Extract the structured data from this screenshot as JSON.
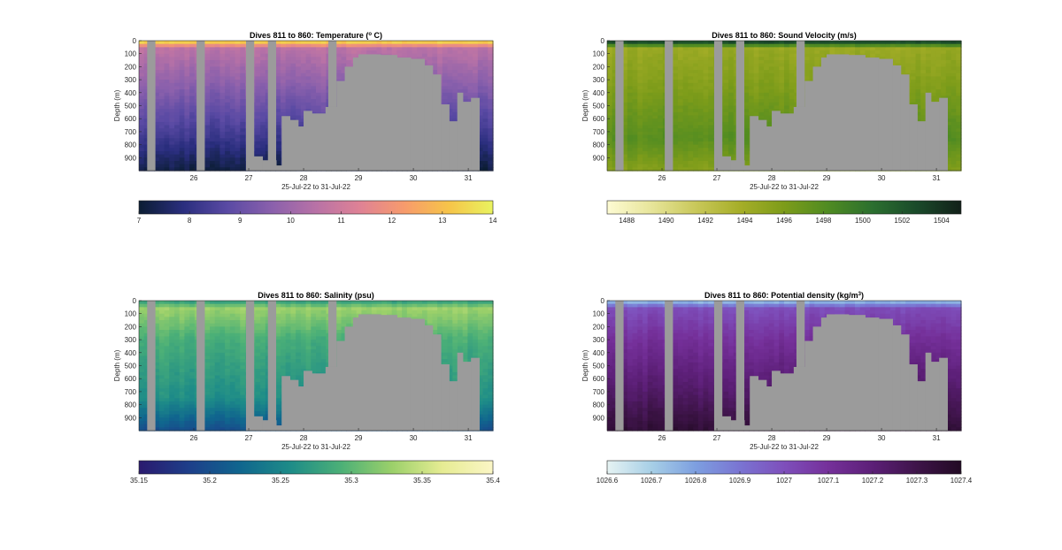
{
  "chart_data": [
    {
      "type": "heatmap",
      "variable": "temperature",
      "title": "Dives 811 to 860: Temperature (",
      "title_sup": "o",
      "title_end": " C)",
      "xlabel": "25-Jul-22 to 31-Jul-22",
      "ylabel": "Depth (m)",
      "xlim": [
        25.0,
        31.45
      ],
      "ylim": [
        0,
        1000
      ],
      "x_ticks": [
        26,
        27,
        28,
        29,
        30,
        31
      ],
      "x_tick_labels": [
        "26",
        "27",
        "28",
        "29",
        "30",
        "31"
      ],
      "y_ticks": [
        0,
        100,
        200,
        300,
        400,
        500,
        600,
        700,
        800,
        900
      ],
      "y_tick_labels": [
        "0",
        "100",
        "200",
        "300",
        "400",
        "500",
        "600",
        "700",
        "800",
        "900"
      ],
      "colorbar": {
        "range": [
          7,
          14
        ],
        "ticks": [
          7,
          8,
          9,
          10,
          11,
          12,
          13,
          14
        ],
        "tick_labels": [
          "7",
          "8",
          "9",
          "10",
          "11",
          "12",
          "13",
          "14"
        ],
        "colors": [
          "#0b1d33",
          "#2a2e7e",
          "#5a4aa4",
          "#8a60ac",
          "#b872a6",
          "#df8295",
          "#f79b6c",
          "#f6c449",
          "#e9f35f"
        ]
      },
      "profile": {
        "surface": 14,
        "thermocline": 10.6,
        "mid": 9.8,
        "deep": 8.2,
        "bottom": 7.2
      }
    },
    {
      "type": "heatmap",
      "variable": "sound_velocity",
      "title": "Dives 811 to 860: Sound Velocity (m/s)",
      "xlabel": "25-Jul-22 to 31-Jul-22",
      "ylabel": "Depth (m)",
      "xlim": [
        25.0,
        31.45
      ],
      "ylim": [
        0,
        1000
      ],
      "x_ticks": [
        26,
        27,
        28,
        29,
        30,
        31
      ],
      "x_tick_labels": [
        "26",
        "27",
        "28",
        "29",
        "30",
        "31"
      ],
      "y_ticks": [
        0,
        100,
        200,
        300,
        400,
        500,
        600,
        700,
        800,
        900
      ],
      "y_tick_labels": [
        "0",
        "100",
        "200",
        "300",
        "400",
        "500",
        "600",
        "700",
        "800",
        "900"
      ],
      "colorbar": {
        "range": [
          1487,
          1505
        ],
        "ticks": [
          1488,
          1490,
          1492,
          1494,
          1496,
          1498,
          1500,
          1502,
          1504
        ],
        "tick_labels": [
          "1488",
          "1490",
          "1492",
          "1494",
          "1496",
          "1498",
          "1500",
          "1502",
          "1504"
        ],
        "colors": [
          "#fdfbd3",
          "#e7e59a",
          "#c9c85a",
          "#a6ae28",
          "#7d9c1a",
          "#4f8b22",
          "#2b6f2f",
          "#1a4a2a",
          "#122019"
        ]
      },
      "profile": {
        "surface": 1504.5,
        "thermocline": 1494.5,
        "mid": 1495.5,
        "deep": 1497.8,
        "bottom": 1495.5
      }
    },
    {
      "type": "heatmap",
      "variable": "salinity",
      "title": "Dives 811 to 860: Salinity (psu)",
      "xlabel": "25-Jul-22 to 31-Jul-22",
      "ylabel": "Depth (m)",
      "xlim": [
        25.0,
        31.45
      ],
      "ylim": [
        0,
        1000
      ],
      "x_ticks": [
        26,
        27,
        28,
        29,
        30,
        31
      ],
      "x_tick_labels": [
        "26",
        "27",
        "28",
        "29",
        "30",
        "31"
      ],
      "y_ticks": [
        0,
        100,
        200,
        300,
        400,
        500,
        600,
        700,
        800,
        900
      ],
      "y_tick_labels": [
        "0",
        "100",
        "200",
        "300",
        "400",
        "500",
        "600",
        "700",
        "800",
        "900"
      ],
      "colorbar": {
        "range": [
          35.15,
          35.4
        ],
        "ticks": [
          35.15,
          35.2,
          35.25,
          35.3,
          35.35,
          35.4
        ],
        "tick_labels": [
          "35.15",
          "35.2",
          "35.25",
          "35.3",
          "35.35",
          "35.4"
        ],
        "colors": [
          "#2a1a6e",
          "#1d3f8a",
          "#10668e",
          "#1e8c88",
          "#4cb077",
          "#9bd06a",
          "#e6ec93",
          "#fbf6c6"
        ]
      },
      "profile": {
        "surface": 35.27,
        "thermocline": 35.33,
        "mid": 35.29,
        "deep": 35.26,
        "bottom": 35.2
      }
    },
    {
      "type": "heatmap",
      "variable": "potential_density",
      "title": "Dives 811 to 860: Potential density (kg/m",
      "title_sup": "3",
      "title_end": ")",
      "xlabel": "25-Jul-22 to 31-Jul-22",
      "ylabel": "Depth (m)",
      "xlim": [
        25.0,
        31.45
      ],
      "ylim": [
        0,
        1000
      ],
      "x_ticks": [
        26,
        27,
        28,
        29,
        30,
        31
      ],
      "x_tick_labels": [
        "26",
        "27",
        "28",
        "29",
        "30",
        "31"
      ],
      "y_ticks": [
        0,
        100,
        200,
        300,
        400,
        500,
        600,
        700,
        800,
        900
      ],
      "y_tick_labels": [
        "0",
        "100",
        "200",
        "300",
        "400",
        "500",
        "600",
        "700",
        "800",
        "900"
      ],
      "colorbar": {
        "range": [
          1026.6,
          1027.4
        ],
        "ticks": [
          1026.6,
          1026.7,
          1026.8,
          1026.9,
          1027,
          1027.1,
          1027.2,
          1027.3,
          1027.4
        ],
        "tick_labels": [
          "1026.6",
          "1026.7",
          "1026.8",
          "1026.9",
          "1027",
          "1027.1",
          "1027.2",
          "1027.3",
          "1027.4"
        ],
        "colors": [
          "#e6f3f3",
          "#a7cfe6",
          "#7d9fe0",
          "#7a74d2",
          "#7e4fbb",
          "#75309a",
          "#5c1f77",
          "#3e1449",
          "#220a24"
        ]
      },
      "profile": {
        "surface": 1026.7,
        "thermocline": 1027.0,
        "mid": 1027.1,
        "deep": 1027.25,
        "bottom": 1027.35
      }
    }
  ],
  "shared": {
    "no_data_color": "#9b9b9b",
    "no_data_columns_x": [
      [
        25.15,
        25.3
      ],
      [
        26.05,
        26.2
      ],
      [
        26.95,
        27.1
      ],
      [
        27.35,
        27.5
      ],
      [
        28.45,
        28.6
      ]
    ],
    "bathymetry_steps": [
      [
        27.0,
        890
      ],
      [
        27.25,
        920
      ],
      [
        27.5,
        960
      ],
      [
        27.6,
        580
      ],
      [
        27.75,
        610
      ],
      [
        27.9,
        660
      ],
      [
        28.0,
        540
      ],
      [
        28.15,
        560
      ],
      [
        28.4,
        510
      ],
      [
        28.6,
        310
      ],
      [
        28.75,
        200
      ],
      [
        28.9,
        130
      ],
      [
        29.0,
        105
      ],
      [
        29.4,
        110
      ],
      [
        29.7,
        130
      ],
      [
        29.95,
        140
      ],
      [
        30.2,
        190
      ],
      [
        30.35,
        260
      ],
      [
        30.5,
        490
      ],
      [
        30.65,
        620
      ],
      [
        30.8,
        400
      ],
      [
        30.9,
        470
      ],
      [
        31.05,
        440
      ],
      [
        31.2,
        1000
      ]
    ]
  }
}
